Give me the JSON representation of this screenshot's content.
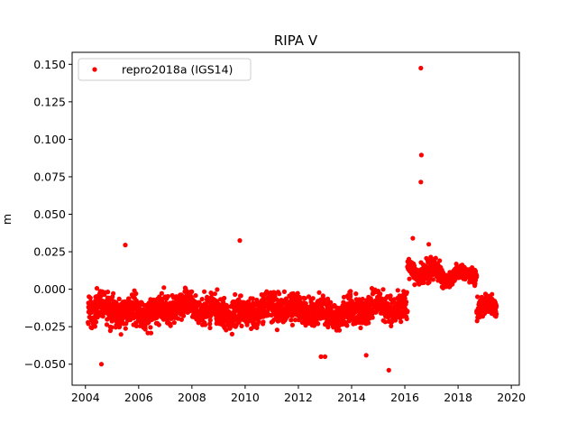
{
  "chart_data": {
    "type": "scatter",
    "title": "RIPA V",
    "xlabel": "",
    "ylabel": "m",
    "xlim": [
      2003.5,
      2020.3
    ],
    "ylim": [
      -0.064,
      0.158
    ],
    "xticks": [
      2004,
      2006,
      2008,
      2010,
      2012,
      2014,
      2016,
      2018,
      2020
    ],
    "xtick_labels": [
      "2004",
      "2006",
      "2008",
      "2010",
      "2012",
      "2014",
      "2016",
      "2018",
      "2020"
    ],
    "yticks": [
      -0.05,
      -0.025,
      0.0,
      0.025,
      0.05,
      0.075,
      0.1,
      0.125,
      0.15
    ],
    "ytick_labels": [
      "−0.050",
      "−0.025",
      "0.000",
      "0.025",
      "0.050",
      "0.075",
      "0.100",
      "0.125",
      "0.150"
    ],
    "grid": false,
    "legend_position": "top-left",
    "series": [
      {
        "name": "repro2018a (IGS14)",
        "color": "#ff0000",
        "marker": "circle",
        "segments": [
          {
            "x_start": 2004.1,
            "x_end": 2016.1,
            "y_center": -0.014,
            "y_spread": 0.011
          },
          {
            "x_start": 2016.1,
            "x_end": 2017.4,
            "y_center": 0.013,
            "y_spread": 0.008
          },
          {
            "x_start": 2017.4,
            "x_end": 2018.7,
            "y_center": 0.009,
            "y_spread": 0.005
          },
          {
            "x_start": 2018.7,
            "x_end": 2019.45,
            "y_center": -0.014,
            "y_spread": 0.007
          }
        ],
        "outliers": [
          {
            "x": 2005.5,
            "y": 0.0295
          },
          {
            "x": 2009.8,
            "y": 0.0325
          },
          {
            "x": 2016.6,
            "y": 0.1475
          },
          {
            "x": 2016.62,
            "y": 0.0895
          },
          {
            "x": 2016.6,
            "y": 0.0715
          },
          {
            "x": 2016.9,
            "y": 0.03
          },
          {
            "x": 2016.3,
            "y": 0.034
          },
          {
            "x": 2004.6,
            "y": -0.05
          },
          {
            "x": 2015.4,
            "y": -0.054
          },
          {
            "x": 2013.0,
            "y": -0.045
          },
          {
            "x": 2012.85,
            "y": -0.045
          },
          {
            "x": 2014.55,
            "y": -0.044
          }
        ]
      }
    ]
  }
}
